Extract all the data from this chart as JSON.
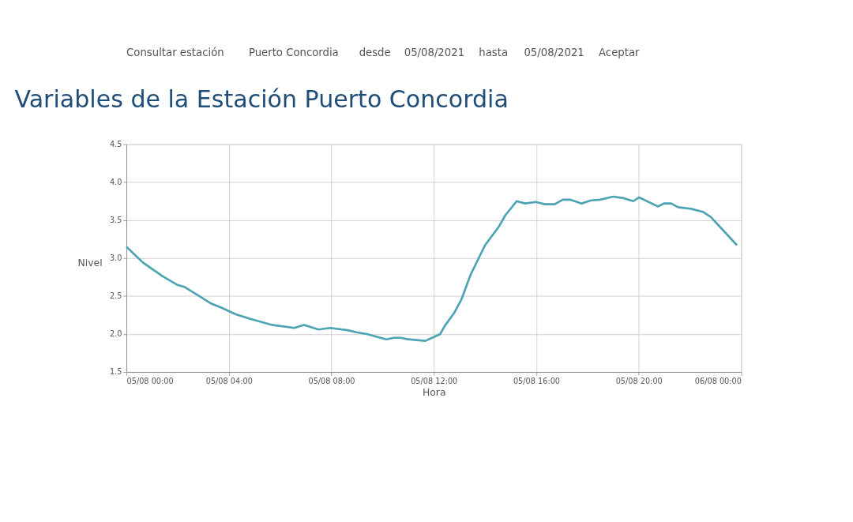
{
  "chart_data": {
    "type": "line",
    "title": "Variables de la Estación Puerto Concordia",
    "xlabel": "Hora",
    "ylabel": "Nivel",
    "annotations": [
      "Consultar estación",
      "Puerto Concordia",
      "desde",
      "05/08/2021",
      "hasta",
      "05/08/2021",
      "Aceptar"
    ],
    "x": [
      "2021-08-05T00:00",
      "2021-08-05T00:39",
      "2021-08-05T01:25",
      "2021-08-05T01:58",
      "2021-08-05T02:16",
      "2021-08-05T03:19",
      "2021-08-05T03:41",
      "2021-08-05T04:16",
      "2021-08-05T04:50",
      "2021-08-05T05:41",
      "2021-08-05T06:33",
      "2021-08-05T06:56",
      "2021-08-05T07:30",
      "2021-08-05T07:57",
      "2021-08-05T08:38",
      "2021-08-05T09:01",
      "2021-08-05T09:23",
      "2021-08-05T10:09",
      "2021-08-05T10:26",
      "2021-08-05T10:43",
      "2021-08-05T11:00",
      "2021-08-05T11:40",
      "2021-08-05T12:00",
      "2021-08-05T12:15",
      "2021-08-05T12:26",
      "2021-08-05T12:48",
      "2021-08-05T13:05",
      "2021-08-05T13:26",
      "2021-08-05T14:00",
      "2021-08-05T14:33",
      "2021-08-05T14:47",
      "2021-08-05T15:14",
      "2021-08-05T15:34",
      "2021-08-05T15:59",
      "2021-08-05T16:20",
      "2021-08-05T16:43",
      "2021-08-05T17:02",
      "2021-08-05T17:19",
      "2021-08-05T17:46",
      "2021-08-05T18:08",
      "2021-08-05T18:30",
      "2021-08-05T19:00",
      "2021-08-05T19:25",
      "2021-08-05T19:47",
      "2021-08-05T20:01",
      "2021-08-05T20:45",
      "2021-08-05T20:59",
      "2021-08-05T21:16",
      "2021-08-05T21:32",
      "2021-08-05T22:02",
      "2021-08-05T22:30",
      "2021-08-05T22:49",
      "2021-08-05T23:17",
      "2021-08-05T23:50"
    ],
    "series": [
      {
        "color": "#4ba3b3",
        "values": [
          3.15,
          2.94,
          2.76,
          2.65,
          2.62,
          2.4,
          2.35,
          2.26,
          2.2,
          2.12,
          2.08,
          2.12,
          2.06,
          2.08,
          2.05,
          2.02,
          2.0,
          1.93,
          1.95,
          1.95,
          1.93,
          1.91,
          1.96,
          2.0,
          2.11,
          2.28,
          2.46,
          2.78,
          3.17,
          3.42,
          3.56,
          3.75,
          3.72,
          3.74,
          3.71,
          3.71,
          3.77,
          3.77,
          3.72,
          3.76,
          3.77,
          3.81,
          3.79,
          3.75,
          3.8,
          3.68,
          3.72,
          3.72,
          3.67,
          3.65,
          3.61,
          3.54,
          3.37,
          3.17
        ]
      }
    ],
    "xlim": [
      "2021-08-05T00:00",
      "2021-08-06T00:00"
    ],
    "xticks": [
      {
        "value": "2021-08-05T00:00",
        "label": "05/08 00:00"
      },
      {
        "value": "2021-08-05T04:00",
        "label": "05/08 04:00"
      },
      {
        "value": "2021-08-05T08:00",
        "label": "05/08 08:00"
      },
      {
        "value": "2021-08-05T12:00",
        "label": "05/08 12:00"
      },
      {
        "value": "2021-08-05T16:00",
        "label": "05/08 16:00"
      },
      {
        "value": "2021-08-05T20:00",
        "label": "05/08 20:00"
      },
      {
        "value": "2021-08-06T00:00",
        "label": "06/08 00:00"
      }
    ],
    "ylim": [
      1.5,
      4.5
    ],
    "yticks": [
      1.5,
      {
        "value": 2.0,
        "label": "2.0"
      },
      2.5,
      {
        "value": 3.0,
        "label": "3.0"
      },
      3.5,
      {
        "value": 4.0,
        "label": "4.0"
      },
      4.5
    ],
    "grid": true,
    "marker": "none",
    "line_style": "solid"
  }
}
